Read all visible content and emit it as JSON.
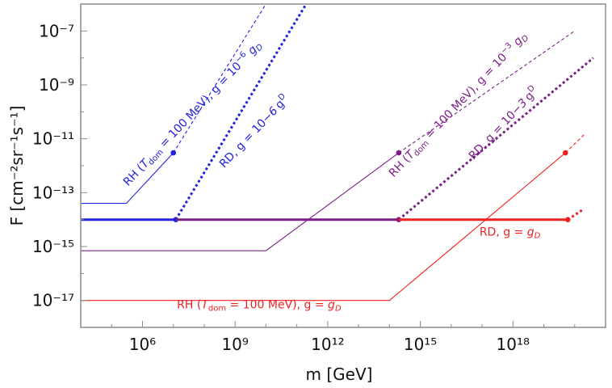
{
  "chart_data": {
    "type": "line",
    "title": "",
    "xlabel": "m [GeV]",
    "ylabel": "F [cm⁻²sr⁻¹s⁻¹]",
    "x_scale": "log",
    "y_scale": "log",
    "xlim": [
      10000.0,
      1e+21
    ],
    "ylim": [
      1e-18,
      1e-06
    ],
    "x_ticks": [
      1000000.0,
      1000000000.0,
      1000000000000.0,
      1000000000000000.0,
      1e+18
    ],
    "x_tick_labels": [
      "10⁶",
      "10⁹",
      "10¹²",
      "10¹⁵",
      "10¹⁸"
    ],
    "y_ticks": [
      1e-17,
      1e-15,
      1e-13,
      1e-11,
      1e-09,
      1e-07
    ],
    "y_tick_labels": [
      "10⁻¹⁷",
      "10⁻¹⁵",
      "10⁻¹³",
      "10⁻¹¹",
      "10⁻⁹",
      "10⁻⁷"
    ],
    "grid": false,
    "legend": "none",
    "series": [
      {
        "name": "RH (T_dom = 100 MeV), g = 10⁻⁶ g_D",
        "color": "#2222dd",
        "style": "thin-solid",
        "x": [
          10000.0,
          300000.0,
          10000000.0
        ],
        "y": [
          4e-14,
          4e-14,
          3e-12
        ],
        "endpoint": [
          10000000.0,
          3e-12
        ],
        "dashed_x": [
          10000000.0,
          10000000000.0
        ],
        "dashed_y": [
          3e-12,
          1e-06
        ]
      },
      {
        "name": "RD, g = 10⁻⁶ g_D",
        "color": "#2222dd",
        "style": "thick-solid",
        "x": [
          10000.0,
          12000000.0
        ],
        "y": [
          1e-14,
          1e-14
        ],
        "endpoint": [
          12000000.0,
          1e-14
        ],
        "dashed_x": [
          12000000.0,
          200000000000.0
        ],
        "dashed_y": [
          1e-14,
          1e-06
        ]
      },
      {
        "name": "RH (T_dom = 100 MeV), g = 10⁻³ g_D",
        "color": "#7a1f86",
        "style": "thin-solid",
        "x": [
          10000.0,
          10000000000.0,
          200000000000000.0
        ],
        "y": [
          7e-16,
          7e-16,
          3e-12
        ],
        "endpoint": [
          200000000000000.0,
          3e-12
        ],
        "dashed_x": [
          200000000000000.0,
          1e+20
        ],
        "dashed_y": [
          3e-12,
          1e-07
        ]
      },
      {
        "name": "RD, g = 10⁻³ g_D",
        "color": "#7a1f86",
        "style": "thick-solid",
        "x": [
          12000000.0,
          200000000000000.0
        ],
        "y": [
          1e-14,
          1e-14
        ],
        "endpoint": [
          200000000000000.0,
          1e-14
        ],
        "dashed_x": [
          200000000000000.0,
          4e+20
        ],
        "dashed_y": [
          1e-14,
          1e-08
        ]
      },
      {
        "name": "RH (T_dom = 100 MeV), g = g_D",
        "color": "#ee2222",
        "style": "thin-solid",
        "x": [
          10000.0,
          100000000000000.0,
          5e+19
        ],
        "y": [
          1e-17,
          1e-17,
          3e-12
        ],
        "endpoint": [
          5e+19,
          3e-12
        ],
        "dashed_x": [
          5e+19,
          2e+20
        ],
        "dashed_y": [
          3e-12,
          1.4e-11
        ]
      },
      {
        "name": "RD, g = g_D",
        "color": "#ee2222",
        "style": "thick-solid",
        "x": [
          200000000000000.0,
          6e+19
        ],
        "y": [
          1e-14,
          1e-14
        ],
        "endpoint": [
          6e+19,
          1e-14
        ],
        "dashed_x": [
          6e+19,
          2e+20
        ],
        "dashed_y": [
          1e-14,
          2.5e-14
        ]
      }
    ],
    "annotations": [
      {
        "id": "rh-blue",
        "color": "#2222dd",
        "angle": -46.5,
        "x": 50000000.0,
        "y": 7e-11,
        "parts": [
          "RH (",
          "T",
          "dom",
          " = 100 MeV), g = 10",
          "−6",
          " ",
          "g",
          "D"
        ]
      },
      {
        "id": "rd-blue",
        "color": "#2222dd",
        "angle": -46.5,
        "x": 5000000000.0,
        "y": 1.5e-11,
        "parts": [
          "RD, g = 10",
          "−6",
          " ",
          "g",
          "D"
        ]
      },
      {
        "id": "rh-purple",
        "color": "#7a1f86",
        "angle": -46.5,
        "x": 2e+16,
        "y": 1.5e-10,
        "parts": [
          "RH (",
          "T",
          "dom",
          " = 100 MeV), g = 10",
          "−3",
          " ",
          "g",
          "D"
        ]
      },
      {
        "id": "rd-purple",
        "color": "#7a1f86",
        "angle": -46.5,
        "x": 6e+17,
        "y": 3e-11,
        "parts": [
          "RD, g = 10",
          "−3",
          " ",
          "g",
          "D"
        ]
      },
      {
        "id": "rd-red",
        "color": "#ee2222",
        "angle": 0,
        "x": 8e+17,
        "y": 2.5e-15,
        "parts": [
          "RD, g = ",
          "",
          "",
          "",
          "",
          "",
          "g",
          "D"
        ]
      },
      {
        "id": "rh-red",
        "color": "#ee2222",
        "angle": 0,
        "x": 6000000000.0,
        "y": 5e-18,
        "parts": [
          "RH (",
          "T",
          "dom",
          " = 100 MeV), g = ",
          "",
          "",
          "g",
          "D"
        ]
      }
    ]
  }
}
